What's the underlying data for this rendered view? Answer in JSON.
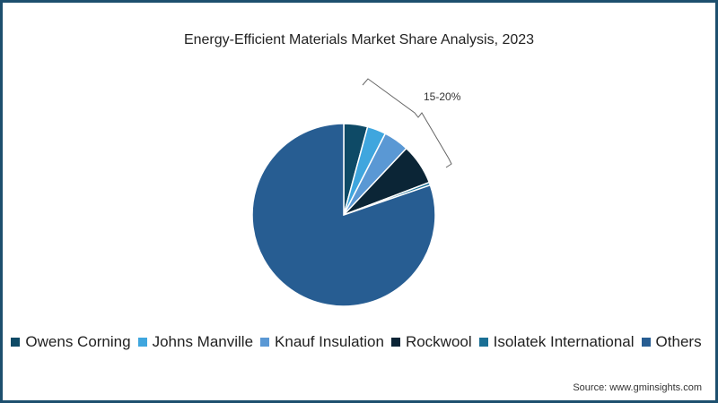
{
  "chart_data": {
    "type": "pie",
    "title": "Energy-Efficient Materials Market Share Analysis, 2023",
    "categories": [
      "Owens Corning",
      "Johns Manville",
      "Knauf Insulation",
      "Rockwool",
      "Isolatek International",
      "Others"
    ],
    "values": [
      4.2,
      3.3,
      4.5,
      7.2,
      0.5,
      80.3
    ],
    "colors": [
      "#0e4a66",
      "#3fa6de",
      "#5a98d4",
      "#0b2536",
      "#1a6f95",
      "#275d92"
    ],
    "annotation": "15-20%",
    "legend_position": "bottom",
    "source": "Source: www.gminsights.com"
  }
}
